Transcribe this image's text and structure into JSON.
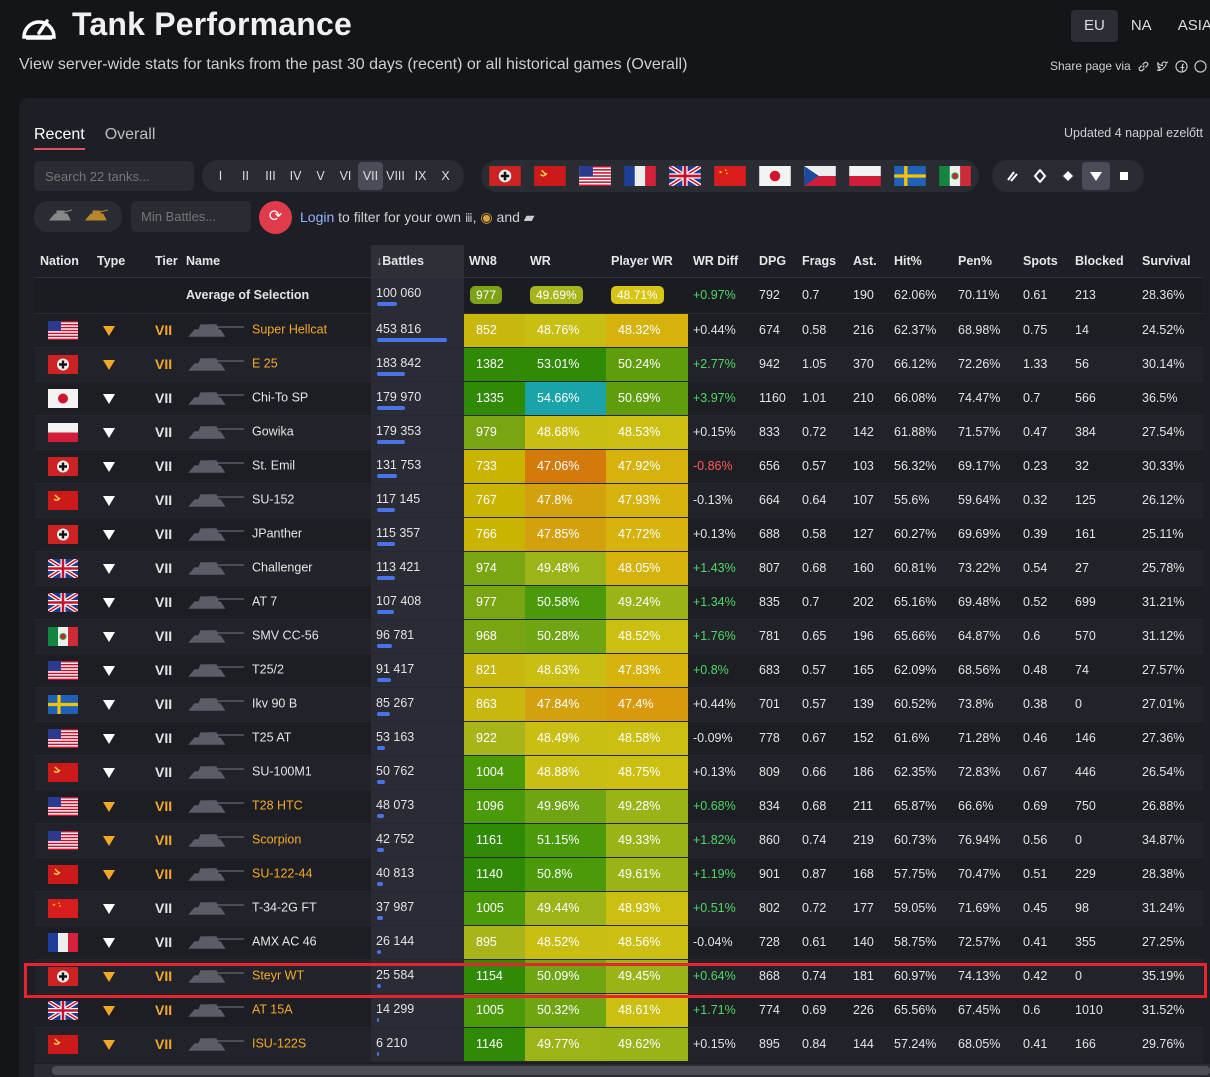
{
  "header": {
    "title": "Tank Performance",
    "subtitle": "View server-wide stats for tanks from the past 30 days (recent) or all historical games (Overall)",
    "regions": [
      "EU",
      "NA",
      "ASIA"
    ],
    "active_region": "EU",
    "share_label": "Share page via"
  },
  "tabs": [
    "Recent",
    "Overall"
  ],
  "updated": "Updated 4 nappal ezelőtt",
  "filters": {
    "search_placeholder": "Search 22 tanks...",
    "tiers": [
      "I",
      "II",
      "III",
      "IV",
      "V",
      "VI",
      "VII",
      "VIII",
      "IX",
      "X"
    ],
    "active_tier": "VII",
    "nations": [
      "germany",
      "ussr",
      "usa",
      "france",
      "uk",
      "china",
      "japan",
      "czech",
      "poland",
      "sweden",
      "italy"
    ],
    "types": [
      "light-tank",
      "medium-tank",
      "heavy-tank",
      "tank-destroyer",
      "spg"
    ],
    "active_type": "tank-destroyer",
    "min_battles_placeholder": "Min Battles...",
    "login_link": "Login",
    "login_text": "to filter for your own",
    "login_comma": ",",
    "login_and": "and"
  },
  "columns": [
    "Nation",
    "Type",
    "Tier",
    "Name",
    "Battles",
    "WN8",
    "WR",
    "Player WR",
    "WR Diff",
    "DPG",
    "Frags",
    "Ast.",
    "Hit%",
    "Pen%",
    "Spots",
    "Blocked",
    "Survival"
  ],
  "sort_arrow": "↓",
  "average": {
    "label": "Average of Selection",
    "battles": "100 060",
    "wn8": "977",
    "wr": "49.69%",
    "pwr": "48.71%",
    "diff": "+0.97%",
    "dpg": "792",
    "frags": "0.7",
    "ast": "190",
    "hit": "62.06%",
    "pen": "70.11%",
    "spots": "0.61",
    "blocked": "213",
    "surv": "28.36%"
  },
  "tier_label": "VII",
  "rows": [
    {
      "nation": "usa",
      "prem": true,
      "name": "Super Hellcat",
      "battles": "453 816",
      "bfrac": 1.0,
      "wn8": "852",
      "wr": "48.76%",
      "pwr": "48.32%",
      "diff": "+0.44%",
      "dpg": "674",
      "frags": "0.58",
      "ast": "216",
      "hit": "62.37%",
      "pen": "68.98%",
      "spots": "0.75",
      "blocked": "14",
      "surv": "24.52%"
    },
    {
      "nation": "germany",
      "prem": true,
      "name": "E 25",
      "battles": "183 842",
      "bfrac": 0.405,
      "wn8": "1382",
      "wr": "53.01%",
      "pwr": "50.24%",
      "diff": "+2.77%",
      "dpg": "942",
      "frags": "1.05",
      "ast": "370",
      "hit": "66.12%",
      "pen": "72.26%",
      "spots": "1.33",
      "blocked": "56",
      "surv": "30.14%"
    },
    {
      "nation": "japan",
      "prem": false,
      "name": "Chi-To SP",
      "battles": "179 970",
      "bfrac": 0.397,
      "wn8": "1335",
      "wr": "54.66%",
      "pwr": "50.69%",
      "diff": "+3.97%",
      "dpg": "1160",
      "frags": "1.01",
      "ast": "210",
      "hit": "66.08%",
      "pen": "74.47%",
      "spots": "0.7",
      "blocked": "566",
      "surv": "36.5%"
    },
    {
      "nation": "poland",
      "prem": false,
      "name": "Gowika",
      "battles": "179 353",
      "bfrac": 0.395,
      "wn8": "979",
      "wr": "48.68%",
      "pwr": "48.53%",
      "diff": "+0.15%",
      "dpg": "833",
      "frags": "0.72",
      "ast": "142",
      "hit": "61.88%",
      "pen": "71.57%",
      "spots": "0.47",
      "blocked": "384",
      "surv": "27.54%"
    },
    {
      "nation": "germany",
      "prem": false,
      "name": "St. Emil",
      "battles": "131 753",
      "bfrac": 0.29,
      "wn8": "733",
      "wr": "47.06%",
      "pwr": "47.92%",
      "diff": "-0.86%",
      "dpg": "656",
      "frags": "0.57",
      "ast": "103",
      "hit": "56.32%",
      "pen": "69.17%",
      "spots": "0.23",
      "blocked": "32",
      "surv": "30.33%"
    },
    {
      "nation": "ussr",
      "prem": false,
      "name": "SU-152",
      "battles": "117 145",
      "bfrac": 0.258,
      "wn8": "767",
      "wr": "47.8%",
      "pwr": "47.93%",
      "diff": "-0.13%",
      "dpg": "664",
      "frags": "0.64",
      "ast": "107",
      "hit": "55.6%",
      "pen": "59.64%",
      "spots": "0.32",
      "blocked": "125",
      "surv": "26.12%"
    },
    {
      "nation": "germany",
      "prem": false,
      "name": "JPanther",
      "battles": "115 357",
      "bfrac": 0.254,
      "wn8": "766",
      "wr": "47.85%",
      "pwr": "47.72%",
      "diff": "+0.13%",
      "dpg": "688",
      "frags": "0.58",
      "ast": "127",
      "hit": "60.27%",
      "pen": "69.69%",
      "spots": "0.39",
      "blocked": "161",
      "surv": "25.11%"
    },
    {
      "nation": "uk",
      "prem": false,
      "name": "Challenger",
      "battles": "113 421",
      "bfrac": 0.25,
      "wn8": "974",
      "wr": "49.48%",
      "pwr": "48.05%",
      "diff": "+1.43%",
      "dpg": "807",
      "frags": "0.68",
      "ast": "160",
      "hit": "60.81%",
      "pen": "73.22%",
      "spots": "0.54",
      "blocked": "27",
      "surv": "25.78%"
    },
    {
      "nation": "uk",
      "prem": false,
      "name": "AT 7",
      "battles": "107 408",
      "bfrac": 0.237,
      "wn8": "977",
      "wr": "50.58%",
      "pwr": "49.24%",
      "diff": "+1.34%",
      "dpg": "835",
      "frags": "0.7",
      "ast": "202",
      "hit": "65.16%",
      "pen": "69.48%",
      "spots": "0.52",
      "blocked": "699",
      "surv": "31.21%"
    },
    {
      "nation": "italy",
      "prem": false,
      "name": "SMV CC-56",
      "battles": "96 781",
      "bfrac": 0.213,
      "wn8": "968",
      "wr": "50.28%",
      "pwr": "48.52%",
      "diff": "+1.76%",
      "dpg": "781",
      "frags": "0.65",
      "ast": "196",
      "hit": "65.66%",
      "pen": "64.87%",
      "spots": "0.6",
      "blocked": "570",
      "surv": "31.12%"
    },
    {
      "nation": "usa",
      "prem": false,
      "name": "T25/2",
      "battles": "91 417",
      "bfrac": 0.201,
      "wn8": "821",
      "wr": "48.63%",
      "pwr": "47.83%",
      "diff": "+0.8%",
      "dpg": "683",
      "frags": "0.57",
      "ast": "165",
      "hit": "62.09%",
      "pen": "68.56%",
      "spots": "0.48",
      "blocked": "74",
      "surv": "27.57%"
    },
    {
      "nation": "sweden",
      "prem": false,
      "name": "Ikv 90 B",
      "battles": "85 267",
      "bfrac": 0.188,
      "wn8": "863",
      "wr": "47.84%",
      "pwr": "47.4%",
      "diff": "+0.44%",
      "dpg": "701",
      "frags": "0.57",
      "ast": "139",
      "hit": "60.52%",
      "pen": "73.8%",
      "spots": "0.38",
      "blocked": "0",
      "surv": "27.01%"
    },
    {
      "nation": "usa",
      "prem": false,
      "name": "T25 AT",
      "battles": "53 163",
      "bfrac": 0.117,
      "wn8": "922",
      "wr": "48.49%",
      "pwr": "48.58%",
      "diff": "-0.09%",
      "dpg": "778",
      "frags": "0.67",
      "ast": "152",
      "hit": "61.6%",
      "pen": "71.28%",
      "spots": "0.46",
      "blocked": "146",
      "surv": "27.36%"
    },
    {
      "nation": "ussr",
      "prem": false,
      "name": "SU-100M1",
      "battles": "50 762",
      "bfrac": 0.112,
      "wn8": "1004",
      "wr": "48.88%",
      "pwr": "48.75%",
      "diff": "+0.13%",
      "dpg": "809",
      "frags": "0.66",
      "ast": "186",
      "hit": "62.35%",
      "pen": "72.83%",
      "spots": "0.67",
      "blocked": "446",
      "surv": "26.54%"
    },
    {
      "nation": "usa",
      "prem": true,
      "name": "T28 HTC",
      "battles": "48 073",
      "bfrac": 0.106,
      "wn8": "1096",
      "wr": "49.96%",
      "pwr": "49.28%",
      "diff": "+0.68%",
      "dpg": "834",
      "frags": "0.68",
      "ast": "211",
      "hit": "65.87%",
      "pen": "66.6%",
      "spots": "0.69",
      "blocked": "750",
      "surv": "26.88%"
    },
    {
      "nation": "usa",
      "prem": true,
      "name": "Scorpion",
      "battles": "42 752",
      "bfrac": 0.094,
      "wn8": "1161",
      "wr": "51.15%",
      "pwr": "49.33%",
      "diff": "+1.82%",
      "dpg": "860",
      "frags": "0.74",
      "ast": "219",
      "hit": "60.73%",
      "pen": "76.94%",
      "spots": "0.56",
      "blocked": "0",
      "surv": "34.87%"
    },
    {
      "nation": "ussr",
      "prem": true,
      "name": "SU-122-44",
      "battles": "40 813",
      "bfrac": 0.09,
      "wn8": "1140",
      "wr": "50.8%",
      "pwr": "49.61%",
      "diff": "+1.19%",
      "dpg": "901",
      "frags": "0.87",
      "ast": "168",
      "hit": "57.75%",
      "pen": "70.47%",
      "spots": "0.51",
      "blocked": "229",
      "surv": "28.38%"
    },
    {
      "nation": "china",
      "prem": false,
      "name": "T-34-2G FT",
      "battles": "37 987",
      "bfrac": 0.084,
      "wn8": "1005",
      "wr": "49.44%",
      "pwr": "48.93%",
      "diff": "+0.51%",
      "dpg": "802",
      "frags": "0.72",
      "ast": "177",
      "hit": "59.05%",
      "pen": "71.69%",
      "spots": "0.45",
      "blocked": "98",
      "surv": "31.24%"
    },
    {
      "nation": "france",
      "prem": false,
      "name": "AMX AC 46",
      "battles": "26 144",
      "bfrac": 0.058,
      "wn8": "895",
      "wr": "48.52%",
      "pwr": "48.56%",
      "diff": "-0.04%",
      "dpg": "728",
      "frags": "0.61",
      "ast": "140",
      "hit": "58.75%",
      "pen": "72.57%",
      "spots": "0.41",
      "blocked": "355",
      "surv": "27.25%"
    },
    {
      "nation": "germany",
      "prem": true,
      "name": "Steyr WT",
      "battles": "25 584",
      "bfrac": 0.056,
      "wn8": "1154",
      "wr": "50.09%",
      "pwr": "49.45%",
      "diff": "+0.64%",
      "dpg": "868",
      "frags": "0.74",
      "ast": "181",
      "hit": "60.97%",
      "pen": "74.13%",
      "spots": "0.42",
      "blocked": "0",
      "surv": "35.19%"
    },
    {
      "nation": "uk",
      "prem": true,
      "name": "AT 15A",
      "battles": "14 299",
      "bfrac": 0.032,
      "wn8": "1005",
      "wr": "50.32%",
      "pwr": "48.61%",
      "diff": "+1.71%",
      "dpg": "774",
      "frags": "0.69",
      "ast": "226",
      "hit": "65.56%",
      "pen": "67.45%",
      "spots": "0.6",
      "blocked": "1010",
      "surv": "31.52%"
    },
    {
      "nation": "ussr",
      "prem": true,
      "name": "ISU-122S",
      "battles": "6 210",
      "bfrac": 0.014,
      "wn8": "1146",
      "wr": "49.77%",
      "pwr": "49.62%",
      "diff": "+0.15%",
      "dpg": "895",
      "frags": "0.84",
      "ast": "144",
      "hit": "57.24%",
      "pen": "68.05%",
      "spots": "0.41",
      "blocked": "166",
      "surv": "29.76%"
    }
  ],
  "highlighted_row": "Steyr WT",
  "colors": {
    "accent": "#e05260",
    "highlight": "#e8252e",
    "premium": "#f4a926",
    "positive": "#4cd964",
    "negative": "#ff5b5b"
  }
}
